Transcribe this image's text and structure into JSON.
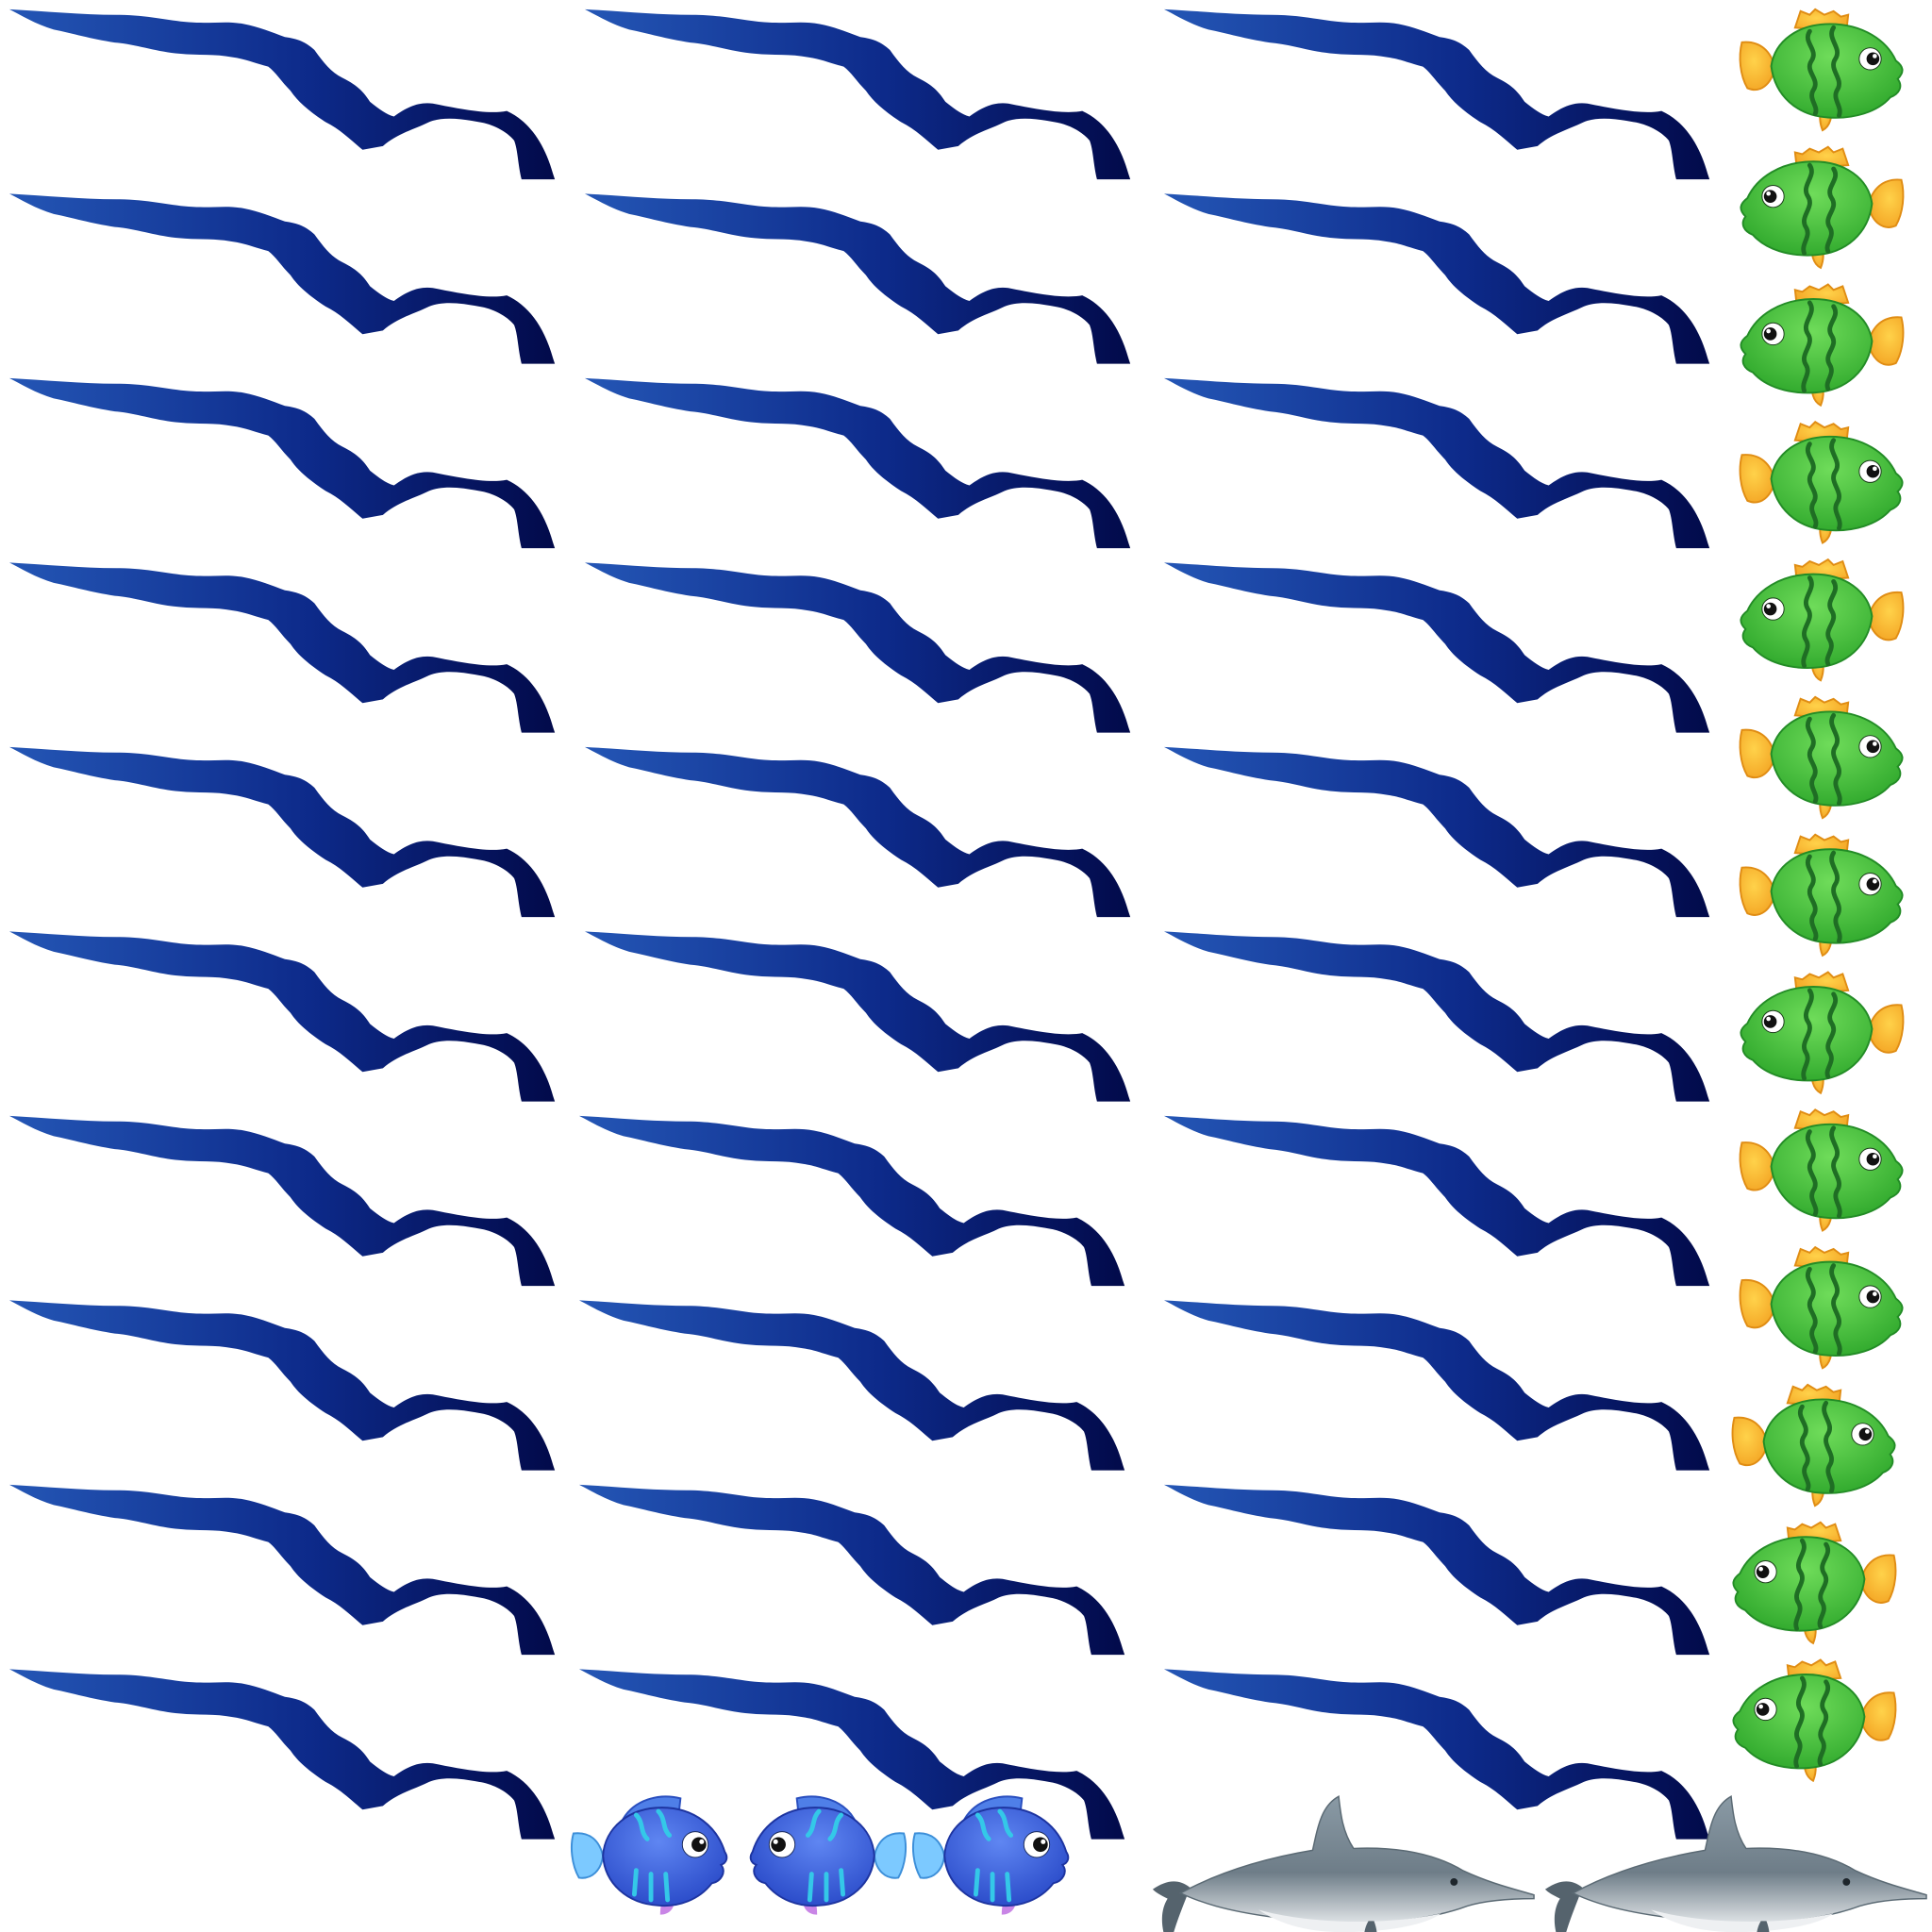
{
  "sprite_sheet": {
    "background_color": "#ffffff",
    "wave": {
      "icon": "wave-icon",
      "columns": 3,
      "rows": 10,
      "colors": {
        "light": "#2456b5",
        "dark": "#020a4a"
      }
    },
    "green_fish": {
      "icon": "green-fish-icon",
      "count": 13,
      "facing": [
        "right",
        "left",
        "left",
        "right",
        "left",
        "right",
        "right",
        "left",
        "right",
        "right",
        "right",
        "left",
        "left"
      ],
      "colors": {
        "body": "#3dbb38",
        "body_light": "#6fdc5a",
        "stripe": "#1f6e24",
        "fin": "#f3a323",
        "fin_light": "#ffd24a"
      }
    },
    "blue_fish": {
      "icon": "blue-fish-icon",
      "count": 3,
      "facing": [
        "right",
        "left",
        "right"
      ],
      "colors": {
        "body": "#2f56d9",
        "body_light": "#5f86f2",
        "stripe": "#34c8e8",
        "fin": "#7cc9ff",
        "fin_pink": "#c985e6"
      }
    },
    "dolphin": {
      "icon": "dolphin-icon",
      "count": 2,
      "colors": {
        "body": "#7f8f9a",
        "belly": "#e6e9ec",
        "fin": "#55636d"
      }
    }
  }
}
